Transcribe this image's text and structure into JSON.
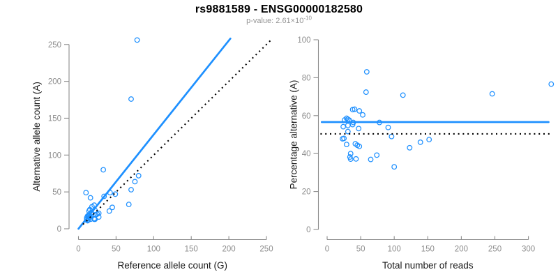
{
  "figure": {
    "title": "rs9881589 - ENSG00000182580",
    "subtitle": {
      "text": "p-value: 2.61×10",
      "exponent": "-10"
    }
  },
  "colors": {
    "point_blue": "#1E90FF",
    "line_blue": "#1E90FF",
    "dotted_black": "#000000",
    "axis_gray": "#8C8C8C",
    "label_black": "#1A1A1A",
    "subtitle_gray": "#969696"
  },
  "chart_data": [
    {
      "id": "left",
      "type": "scatter",
      "xlabel": "Reference allele count (G)",
      "ylabel": "Alternative allele count (A)",
      "xlim": [
        0,
        260
      ],
      "ylim": [
        0,
        260
      ],
      "xticks": [
        0,
        50,
        100,
        150,
        200,
        250
      ],
      "yticks": [
        0,
        50,
        100,
        150,
        200,
        250
      ],
      "grid": false,
      "marker": "open-circle",
      "points": [
        [
          10,
          49
        ],
        [
          78,
          256
        ],
        [
          16,
          42
        ],
        [
          33,
          80
        ],
        [
          70,
          176
        ],
        [
          14,
          24
        ],
        [
          15,
          26
        ],
        [
          18,
          30
        ],
        [
          21,
          32
        ],
        [
          13,
          18
        ],
        [
          12,
          17
        ],
        [
          14,
          19
        ],
        [
          11,
          15
        ],
        [
          17,
          22
        ],
        [
          34,
          44
        ],
        [
          11,
          13
        ],
        [
          14,
          17
        ],
        [
          17,
          21
        ],
        [
          42,
          49
        ],
        [
          22,
          25
        ],
        [
          15,
          16
        ],
        [
          49,
          47
        ],
        [
          12,
          11
        ],
        [
          13,
          12
        ],
        [
          75,
          64
        ],
        [
          80,
          72
        ],
        [
          16,
          13
        ],
        [
          23,
          19
        ],
        [
          25,
          20
        ],
        [
          27,
          21
        ],
        [
          70,
          53
        ],
        [
          21,
          14
        ],
        [
          21,
          13
        ],
        [
          45,
          29
        ],
        [
          22,
          13
        ],
        [
          27,
          16
        ],
        [
          41,
          24
        ],
        [
          67,
          33
        ]
      ],
      "lines": [
        {
          "name": "fit-line",
          "style": "solid",
          "color": "#1E90FF",
          "x1": 0,
          "y1": 0,
          "x2": 202,
          "y2": 258
        },
        {
          "name": "identity-line",
          "style": "dotted",
          "color": "#000000",
          "x1": 6,
          "y1": 6,
          "x2": 256,
          "y2": 256
        }
      ]
    },
    {
      "id": "right",
      "type": "scatter",
      "xlabel": "Total number of reads",
      "ylabel": "Percentage alternative (A)",
      "xlim": [
        0,
        340
      ],
      "ylim": [
        0,
        100
      ],
      "xticks": [
        0,
        50,
        100,
        150,
        200,
        250,
        300
      ],
      "yticks": [
        0,
        20,
        40,
        60,
        80,
        100
      ],
      "grid": false,
      "marker": "open-circle",
      "points": [
        [
          59,
          83.1
        ],
        [
          334,
          76.6
        ],
        [
          58,
          72.4
        ],
        [
          113,
          70.8
        ],
        [
          246,
          71.5
        ],
        [
          38,
          63.2
        ],
        [
          41,
          63.4
        ],
        [
          48,
          62.5
        ],
        [
          53,
          60.4
        ],
        [
          31,
          58.1
        ],
        [
          29,
          58.6
        ],
        [
          33,
          57.6
        ],
        [
          26,
          57.7
        ],
        [
          39,
          56.4
        ],
        [
          78,
          56.4
        ],
        [
          24,
          54.2
        ],
        [
          31,
          54.8
        ],
        [
          38,
          55.3
        ],
        [
          91,
          53.8
        ],
        [
          47,
          53.2
        ],
        [
          31,
          51.6
        ],
        [
          96,
          49.0
        ],
        [
          23,
          47.8
        ],
        [
          25,
          48.0
        ],
        [
          139,
          46.0
        ],
        [
          152,
          47.4
        ],
        [
          29,
          44.8
        ],
        [
          42,
          45.2
        ],
        [
          45,
          44.4
        ],
        [
          48,
          43.8
        ],
        [
          123,
          43.1
        ],
        [
          35,
          40.0
        ],
        [
          34,
          38.2
        ],
        [
          74,
          39.2
        ],
        [
          35,
          37.1
        ],
        [
          43,
          37.2
        ],
        [
          65,
          36.9
        ],
        [
          100,
          33.0
        ]
      ],
      "lines": [
        {
          "name": "mean-line",
          "style": "solid",
          "color": "#1E90FF",
          "x1": -8,
          "y1": 56.6,
          "x2": 330,
          "y2": 56.6
        },
        {
          "name": "expected-line",
          "style": "dotted",
          "color": "#000000",
          "x1": -10,
          "y1": 50.4,
          "x2": 332,
          "y2": 50.4
        }
      ]
    }
  ]
}
